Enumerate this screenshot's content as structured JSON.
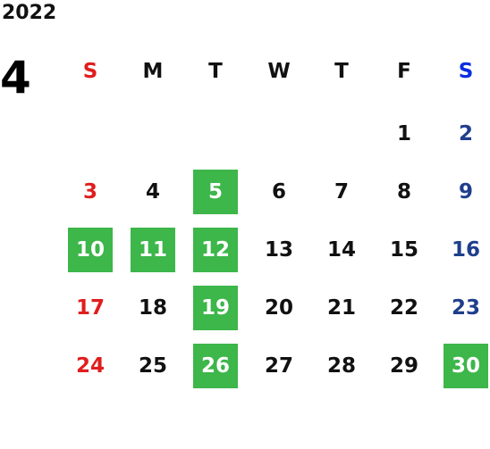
{
  "calendar": {
    "year": "2022",
    "month": "4",
    "weekdays": [
      "S",
      "M",
      "T",
      "W",
      "T",
      "F",
      "S"
    ],
    "weeks": [
      [
        "",
        "",
        "",
        "",
        "",
        "1",
        "2"
      ],
      [
        "3",
        "4",
        "5",
        "6",
        "7",
        "8",
        "9"
      ],
      [
        "10",
        "11",
        "12",
        "13",
        "14",
        "15",
        "16"
      ],
      [
        "17",
        "18",
        "19",
        "20",
        "21",
        "22",
        "23"
      ],
      [
        "24",
        "25",
        "26",
        "27",
        "28",
        "29",
        "30"
      ]
    ],
    "highlighted_days": [
      "5",
      "10",
      "11",
      "12",
      "19",
      "26",
      "30"
    ],
    "colors": {
      "sunday": "#e01e1e",
      "saturday_header": "#0a2ee0",
      "saturday": "#1f3e8c",
      "highlight": "#3db64a",
      "text": "#111111"
    }
  }
}
